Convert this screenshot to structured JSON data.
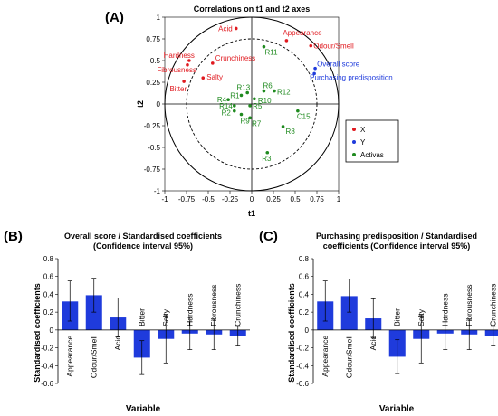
{
  "panels": {
    "a_label": "(A)",
    "b_label": "(B)",
    "c_label": "(C)"
  },
  "colors": {
    "x": "#e0191f",
    "y": "#1f3bdc",
    "activas": "#1f8a1f",
    "bar": "#1f3bdc"
  },
  "chart_data": [
    {
      "type": "scatter",
      "title": "Correlations on t1 and t2 axes",
      "xlabel": "t1",
      "ylabel": "t2",
      "xlim": [
        -1,
        1
      ],
      "ylim": [
        -1,
        1
      ],
      "xticks": [
        "-1",
        "-0.75",
        "-0.5",
        "-0.25",
        "0",
        "0.25",
        "0.5",
        "0.75",
        "1"
      ],
      "yticks": [
        "1",
        "0.75",
        "0.5",
        "0.25",
        "0",
        "-0.25",
        "-0.5",
        "-0.75",
        "-1"
      ],
      "circles": [
        1,
        0.75
      ],
      "legend": {
        "position": "right",
        "items": [
          "X",
          "Y",
          "Activas"
        ]
      },
      "series": [
        {
          "name": "X",
          "points": [
            {
              "label": "Acid",
              "x": -0.18,
              "y": 0.87
            },
            {
              "label": "Appearance",
              "x": 0.4,
              "y": 0.73
            },
            {
              "label": "Odour/Smell",
              "x": 0.68,
              "y": 0.67
            },
            {
              "label": "Hardness",
              "x": -0.72,
              "y": 0.5
            },
            {
              "label": "Crunchiness",
              "x": -0.45,
              "y": 0.47
            },
            {
              "label": "Fibrousness",
              "x": -0.74,
              "y": 0.45
            },
            {
              "label": "Salty",
              "x": -0.56,
              "y": 0.3
            },
            {
              "label": "Bitter",
              "x": -0.78,
              "y": 0.26
            }
          ]
        },
        {
          "name": "Y",
          "points": [
            {
              "label": "Overall score",
              "x": 0.73,
              "y": 0.41
            },
            {
              "label": "Purchasing predisposition",
              "x": 0.72,
              "y": 0.35
            }
          ]
        },
        {
          "name": "Activas",
          "points": [
            {
              "label": "R11",
              "x": 0.14,
              "y": 0.66
            },
            {
              "label": "R6",
              "x": 0.14,
              "y": 0.15
            },
            {
              "label": "R12",
              "x": 0.26,
              "y": 0.15
            },
            {
              "label": "R13",
              "x": -0.05,
              "y": 0.13
            },
            {
              "label": "R1",
              "x": -0.12,
              "y": 0.1
            },
            {
              "label": "R10",
              "x": 0.03,
              "y": 0.06
            },
            {
              "label": "R4",
              "x": -0.27,
              "y": 0.05
            },
            {
              "label": "R14",
              "x": -0.2,
              "y": -0.02
            },
            {
              "label": "R5",
              "x": -0.02,
              "y": -0.02
            },
            {
              "label": "R2",
              "x": -0.2,
              "y": -0.08
            },
            {
              "label": "R9",
              "x": -0.12,
              "y": -0.12
            },
            {
              "label": "R7",
              "x": -0.02,
              "y": -0.16
            },
            {
              "label": "C15",
              "x": 0.53,
              "y": -0.08
            },
            {
              "label": "R8",
              "x": 0.36,
              "y": -0.26
            },
            {
              "label": "R3",
              "x": 0.18,
              "y": -0.56
            }
          ]
        }
      ]
    },
    {
      "type": "bar",
      "title": "Overall score / Standardised coefficients (Confidence interval 95%)",
      "title_lines": [
        "Overall score / Standardised coefficients",
        "(Confidence interval 95%)"
      ],
      "xlabel": "Variable",
      "ylabel": "Standardised coefficients",
      "ylim": [
        -0.6,
        0.8
      ],
      "yticks": [
        "0.8",
        "0.6",
        "0.4",
        "0.2",
        "0",
        "-0.2",
        "-0.4",
        "-0.6"
      ],
      "categories": [
        "Appearance",
        "Odour/Smell",
        "Acid",
        "Bitter",
        "Salty",
        "Hardness",
        "Fibrousness",
        "Crunchiness"
      ],
      "values": [
        0.32,
        0.39,
        0.14,
        -0.31,
        -0.1,
        -0.04,
        -0.05,
        -0.07
      ],
      "ci_low": [
        0.1,
        0.2,
        -0.08,
        -0.5,
        -0.37,
        -0.22,
        -0.22,
        -0.18
      ],
      "ci_high": [
        0.55,
        0.58,
        0.36,
        -0.12,
        0.17,
        0.14,
        0.12,
        0.04
      ]
    },
    {
      "type": "bar",
      "title": "Purchasing predisposition / Standardised coefficients (Confidence interval 95%)",
      "title_lines": [
        "Purchasing predisposition / Standardised",
        "coefficients (Confidence interval 95%)"
      ],
      "xlabel": "Variable",
      "ylabel": "Standardised coefficients",
      "ylim": [
        -0.6,
        0.8
      ],
      "yticks": [
        "0.8",
        "0.6",
        "0.4",
        "0.2",
        "0",
        "-0.2",
        "-0.4",
        "-0.6"
      ],
      "categories": [
        "Appearance",
        "Odour/Smell",
        "Acid",
        "Bitter",
        "Salty",
        "Hardness",
        "Fibrousness",
        "Crunchiness"
      ],
      "values": [
        0.32,
        0.38,
        0.13,
        -0.3,
        -0.1,
        -0.04,
        -0.05,
        -0.07
      ],
      "ci_low": [
        0.1,
        0.2,
        -0.09,
        -0.49,
        -0.37,
        -0.22,
        -0.22,
        -0.18
      ],
      "ci_high": [
        0.55,
        0.57,
        0.35,
        -0.11,
        0.17,
        0.14,
        0.12,
        0.04
      ]
    }
  ]
}
